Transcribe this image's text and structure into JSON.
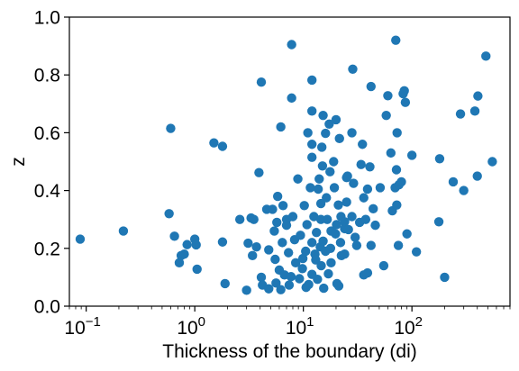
{
  "chart_data": {
    "type": "scatter",
    "xlabel": "Thickness of the boundary (di)",
    "ylabel": "z",
    "x_scale": "log",
    "xlim": [
      0.07,
      800
    ],
    "ylim": [
      0,
      1
    ],
    "x_ticks": [
      {
        "value": 0.1,
        "base": "10",
        "exp": "−1"
      },
      {
        "value": 1,
        "base": "10",
        "exp": "0"
      },
      {
        "value": 10,
        "base": "10",
        "exp": "1"
      },
      {
        "value": 100,
        "base": "10",
        "exp": "2"
      }
    ],
    "y_ticks": [
      {
        "value": 0.0,
        "label": "0.0"
      },
      {
        "value": 0.2,
        "label": "0.2"
      },
      {
        "value": 0.4,
        "label": "0.4"
      },
      {
        "value": 0.6,
        "label": "0.6"
      },
      {
        "value": 0.8,
        "label": "0.8"
      },
      {
        "value": 1.0,
        "label": "1.0"
      }
    ],
    "grid": false,
    "legend": "none",
    "marker_color": "#1f77b4",
    "points": [
      [
        0.088,
        0.232
      ],
      [
        0.22,
        0.26
      ],
      [
        0.58,
        0.32
      ],
      [
        0.6,
        0.615
      ],
      [
        0.65,
        0.242
      ],
      [
        0.72,
        0.15
      ],
      [
        0.75,
        0.175
      ],
      [
        0.8,
        0.18
      ],
      [
        0.85,
        0.213
      ],
      [
        1.0,
        0.232
      ],
      [
        1.03,
        0.212
      ],
      [
        1.05,
        0.128
      ],
      [
        1.5,
        0.565
      ],
      [
        1.8,
        0.553
      ],
      [
        1.8,
        0.222
      ],
      [
        1.9,
        0.078
      ],
      [
        2.6,
        0.3
      ],
      [
        3.0,
        0.055
      ],
      [
        3.1,
        0.218
      ],
      [
        3.3,
        0.305
      ],
      [
        3.4,
        0.175
      ],
      [
        3.5,
        0.3
      ],
      [
        3.7,
        0.205
      ],
      [
        3.9,
        0.462
      ],
      [
        4.1,
        0.775
      ],
      [
        4.1,
        0.1
      ],
      [
        4.2,
        0.073
      ],
      [
        4.6,
        0.335
      ],
      [
        4.8,
        0.195
      ],
      [
        4.8,
        0.06
      ],
      [
        5.2,
        0.335
      ],
      [
        5.4,
        0.26
      ],
      [
        5.5,
        0.162
      ],
      [
        5.6,
        0.08
      ],
      [
        5.7,
        0.29
      ],
      [
        5.8,
        0.38
      ],
      [
        6.0,
        0.125
      ],
      [
        6.2,
        0.057
      ],
      [
        6.2,
        0.62
      ],
      [
        6.4,
        0.22
      ],
      [
        6.5,
        0.348
      ],
      [
        6.7,
        0.108
      ],
      [
        7.0,
        0.3
      ],
      [
        7.0,
        0.28
      ],
      [
        7.3,
        0.185
      ],
      [
        7.4,
        0.073
      ],
      [
        7.7,
        0.102
      ],
      [
        7.8,
        0.905
      ],
      [
        7.8,
        0.72
      ],
      [
        8.0,
        0.31
      ],
      [
        8.3,
        0.23
      ],
      [
        8.5,
        0.15
      ],
      [
        8.9,
        0.44
      ],
      [
        9.2,
        0.095
      ],
      [
        9.4,
        0.245
      ],
      [
        9.8,
        0.13
      ],
      [
        9.9,
        0.165
      ],
      [
        10.2,
        0.348
      ],
      [
        10.5,
        0.19
      ],
      [
        10.6,
        0.065
      ],
      [
        10.8,
        0.282
      ],
      [
        11.0,
        0.6
      ],
      [
        11.2,
        0.075
      ],
      [
        11.6,
        0.41
      ],
      [
        12.0,
        0.515
      ],
      [
        12.0,
        0.782
      ],
      [
        12.0,
        0.56
      ],
      [
        12.0,
        0.22
      ],
      [
        12.0,
        0.11
      ],
      [
        12.0,
        0.675
      ],
      [
        12.5,
        0.31
      ],
      [
        12.8,
        0.18
      ],
      [
        13.0,
        0.16
      ],
      [
        13.2,
        0.255
      ],
      [
        13.5,
        0.093
      ],
      [
        13.7,
        0.405
      ],
      [
        14.0,
        0.44
      ],
      [
        14.3,
        0.205
      ],
      [
        14.5,
        0.355
      ],
      [
        14.5,
        0.3
      ],
      [
        14.6,
        0.14
      ],
      [
        14.8,
        0.55
      ],
      [
        15.0,
        0.485
      ],
      [
        15.2,
        0.66
      ],
      [
        15.2,
        0.225
      ],
      [
        15.4,
        0.062
      ],
      [
        16.0,
        0.598
      ],
      [
        16.0,
        0.19
      ],
      [
        16.3,
        0.375
      ],
      [
        16.6,
        0.3
      ],
      [
        17.0,
        0.112
      ],
      [
        17.3,
        0.63
      ],
      [
        17.6,
        0.465
      ],
      [
        17.8,
        0.2
      ],
      [
        18.0,
        0.26
      ],
      [
        18.0,
        0.15
      ],
      [
        19.0,
        0.5
      ],
      [
        19.3,
        0.41
      ],
      [
        19.8,
        0.25
      ],
      [
        20.0,
        0.645
      ],
      [
        20.2,
        0.282
      ],
      [
        20.4,
        0.078
      ],
      [
        21.0,
        0.35
      ],
      [
        21.2,
        0.07
      ],
      [
        21.5,
        0.58
      ],
      [
        22.0,
        0.22
      ],
      [
        22.2,
        0.31
      ],
      [
        22.4,
        0.175
      ],
      [
        24.0,
        0.292
      ],
      [
        24.0,
        0.18
      ],
      [
        24.0,
        0.268
      ],
      [
        25.0,
        0.445
      ],
      [
        25.0,
        0.36
      ],
      [
        25.5,
        0.45
      ],
      [
        26.0,
        0.265
      ],
      [
        28.0,
        0.31
      ],
      [
        28.0,
        0.6
      ],
      [
        28.5,
        0.82
      ],
      [
        29.0,
        0.425
      ],
      [
        30.0,
        0.238
      ],
      [
        31.0,
        0.21
      ],
      [
        33.0,
        0.29
      ],
      [
        34.0,
        0.49
      ],
      [
        35.0,
        0.56
      ],
      [
        36.0,
        0.108
      ],
      [
        36.0,
        0.375
      ],
      [
        37.5,
        0.3
      ],
      [
        39.0,
        0.115
      ],
      [
        39.0,
        0.405
      ],
      [
        41.0,
        0.482
      ],
      [
        42.0,
        0.21
      ],
      [
        42.0,
        0.76
      ],
      [
        44.0,
        0.337
      ],
      [
        46.0,
        0.28
      ],
      [
        51.0,
        0.41
      ],
      [
        55.0,
        0.14
      ],
      [
        58.0,
        0.66
      ],
      [
        60.0,
        0.728
      ],
      [
        64.0,
        0.53
      ],
      [
        66.0,
        0.33
      ],
      [
        70.0,
        0.41
      ],
      [
        71.0,
        0.92
      ],
      [
        72.0,
        0.472
      ],
      [
        72.5,
        0.35
      ],
      [
        73.0,
        0.6
      ],
      [
        75.0,
        0.21
      ],
      [
        76.0,
        0.42
      ],
      [
        80.0,
        0.43
      ],
      [
        83.0,
        0.735
      ],
      [
        85.0,
        0.745
      ],
      [
        87.0,
        0.705
      ],
      [
        90.0,
        0.25
      ],
      [
        100.0,
        0.522
      ],
      [
        110.0,
        0.188
      ],
      [
        177.0,
        0.292
      ],
      [
        180.0,
        0.51
      ],
      [
        200.0,
        0.1
      ],
      [
        240.0,
        0.43
      ],
      [
        280.0,
        0.665
      ],
      [
        300.0,
        0.4
      ],
      [
        380.0,
        0.675
      ],
      [
        400.0,
        0.45
      ],
      [
        405.0,
        0.727
      ],
      [
        480.0,
        0.865
      ],
      [
        550.0,
        0.5
      ]
    ]
  }
}
